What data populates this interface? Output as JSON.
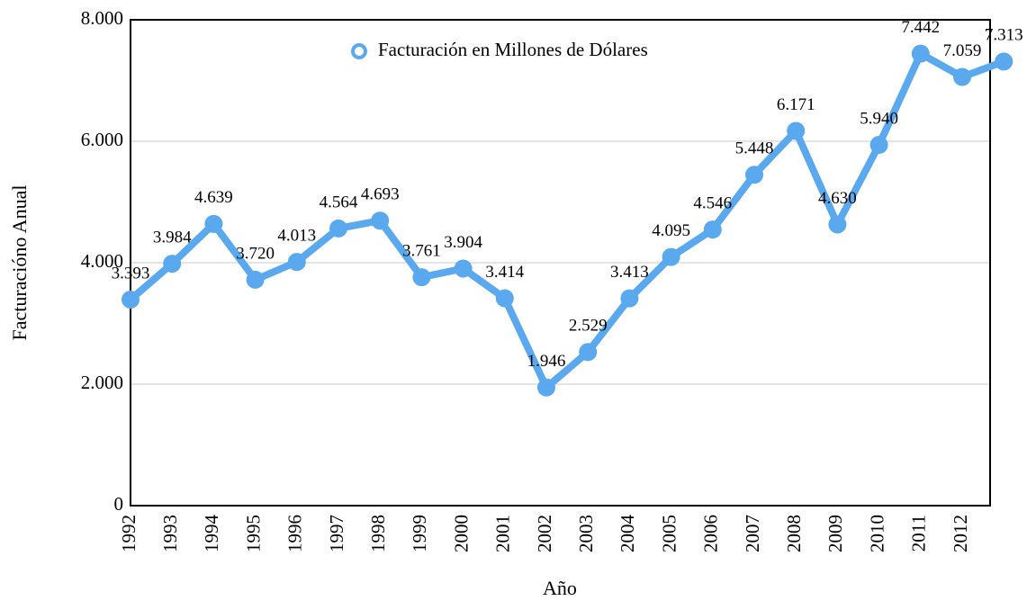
{
  "chart_data": {
    "type": "line",
    "x_label": "Año",
    "y_label": "Facturacióno Anual",
    "categories": [
      "1992",
      "1993",
      "1994",
      "1995",
      "1996",
      "1997",
      "1998",
      "1999",
      "2000",
      "2001",
      "2002",
      "2003",
      "2004",
      "2005",
      "2006",
      "2007",
      "2008",
      "2009",
      "2010",
      "2011",
      "2012",
      null
    ],
    "series": [
      {
        "name": "Facturación en Millones de Dólares",
        "color": "#5aa9ee",
        "values": [
          3393,
          3984,
          4639,
          3720,
          4013,
          4564,
          4693,
          3761,
          3904,
          3414,
          1946,
          2529,
          3413,
          4095,
          4546,
          5448,
          6171,
          4630,
          5940,
          7442,
          7059,
          7313
        ],
        "value_labels": [
          "3.393",
          "3.984",
          "4.639",
          "3.720",
          "4.013",
          "4.564",
          "4.693",
          "3.761",
          "3.904",
          "3.414",
          "1.946",
          "2.529",
          "3.413",
          "4.095",
          "4.546",
          "5.448",
          "6.171",
          "4.630",
          "5.940",
          "7.442",
          "7.059",
          "7.313"
        ]
      }
    ],
    "ylim": [
      0,
      8000
    ],
    "yticks": [
      0,
      {
        "value": 2000,
        "label": "2.000"
      },
      {
        "value": 4000,
        "label": "4.000"
      },
      {
        "value": 6000,
        "label": "6.000"
      },
      {
        "value": 8000,
        "label": "8.000"
      }
    ],
    "grid": true,
    "legend": "top"
  }
}
